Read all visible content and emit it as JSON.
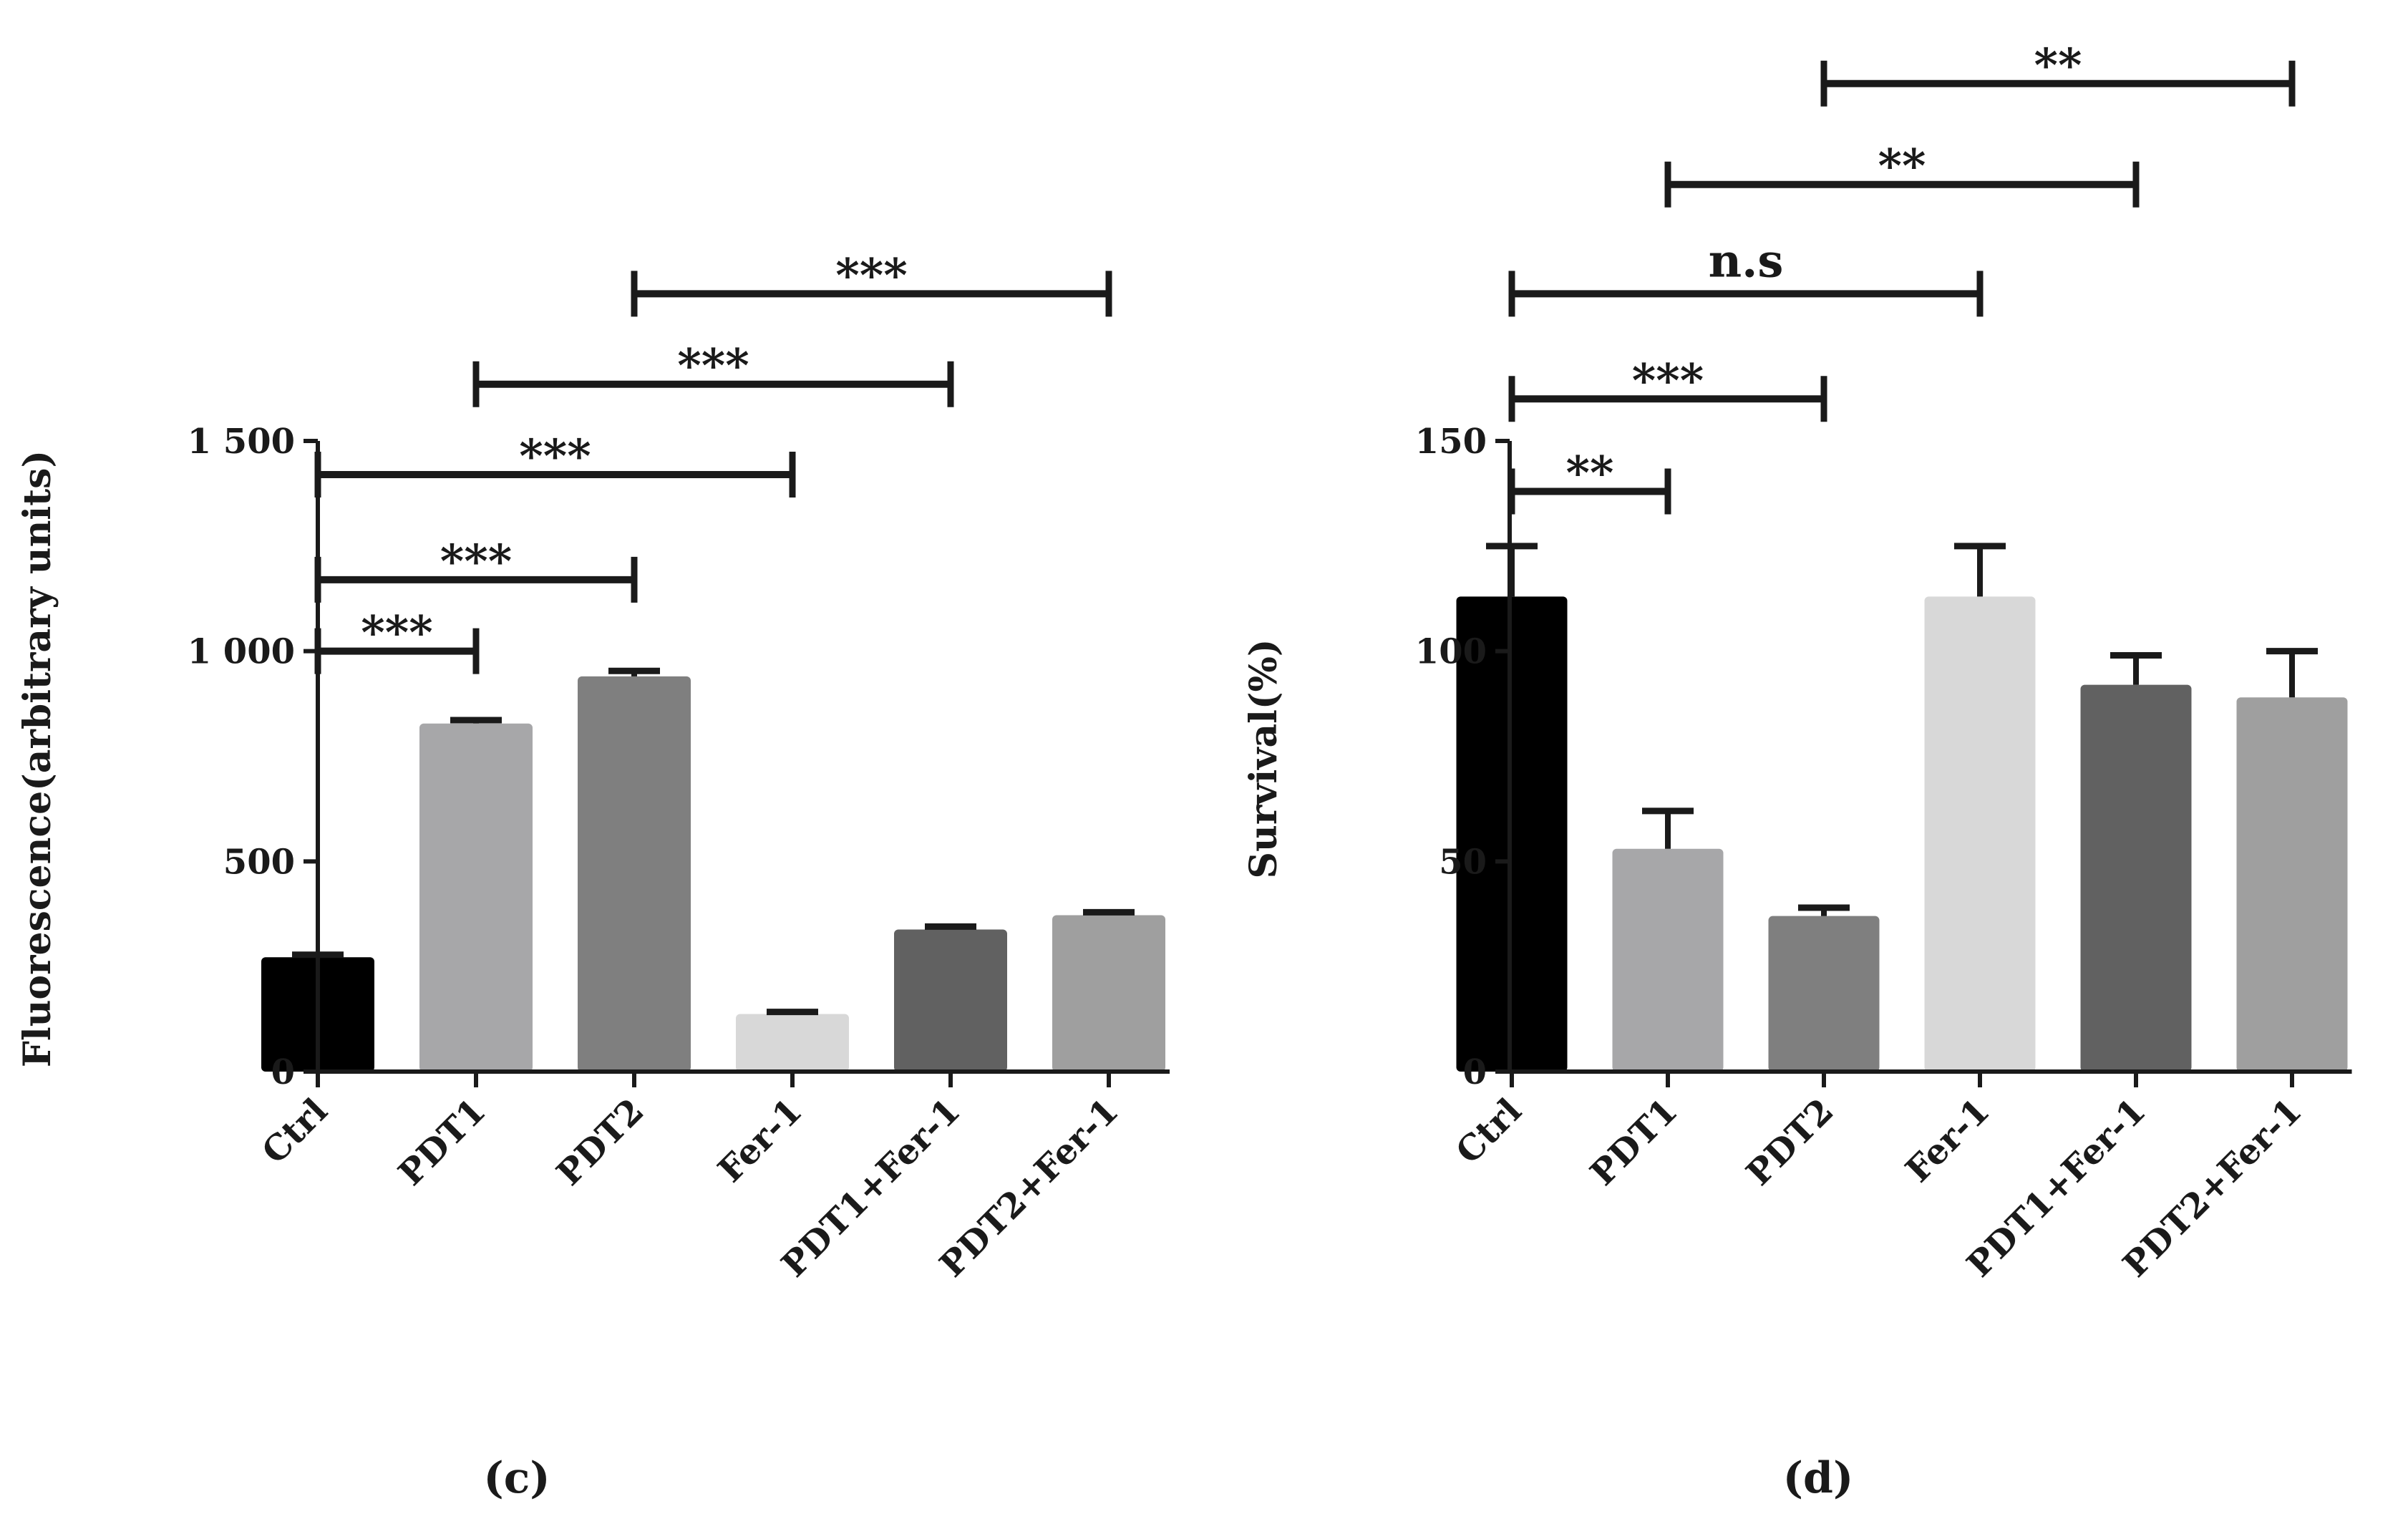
{
  "chart_data": [
    {
      "type": "bar",
      "panel": "c",
      "ylabel": "Fluorescence(arbitrary units)",
      "ylim": [
        0,
        1500
      ],
      "yticks": [
        0,
        500,
        1000,
        1500
      ],
      "ytick_labels": [
        "0",
        "500",
        "1 000",
        "1 500"
      ],
      "categories": [
        "Ctrl",
        "PDT1",
        "PDT2",
        "Fer-1",
        "PDT1+Fer-1",
        "PDT2+Fer-1"
      ],
      "values": [
        272,
        828,
        940,
        137,
        338,
        372
      ],
      "errors": [
        6,
        8,
        13,
        5,
        7,
        7
      ],
      "colors": [
        "#000000",
        "#a7a7a9",
        "#7f7f7f",
        "#d8d8d8",
        "#616161",
        "#9f9f9f"
      ],
      "comparisons": [
        {
          "from": 0,
          "to": 1,
          "label": "***",
          "level": 1000
        },
        {
          "from": 0,
          "to": 2,
          "label": "***",
          "level": 1170
        },
        {
          "from": 0,
          "to": 3,
          "label": "***",
          "level": 1420
        },
        {
          "from": 1,
          "to": 4,
          "label": "***",
          "level": 1635
        },
        {
          "from": 2,
          "to": 5,
          "label": "***",
          "level": 1850
        }
      ]
    },
    {
      "type": "bar",
      "panel": "d",
      "ylabel": "Survival(%)",
      "ylim": [
        0,
        150
      ],
      "yticks": [
        0,
        50,
        100,
        150
      ],
      "ytick_labels": [
        "0",
        "50",
        "100",
        "150"
      ],
      "categories": [
        "Ctrl",
        "PDT1",
        "PDT2",
        "Fer-1",
        "PDT1+Fer-1",
        "PDT2+Fer-1"
      ],
      "values": [
        113,
        53,
        37,
        113,
        92,
        89
      ],
      "errors": [
        12,
        9,
        2,
        12,
        7,
        11
      ],
      "colors": [
        "#000000",
        "#a7a7a9",
        "#7f7f7f",
        "#d8d8d8",
        "#616161",
        "#9f9f9f"
      ],
      "comparisons": [
        {
          "from": 0,
          "to": 1,
          "label": "**",
          "level": 138
        },
        {
          "from": 0,
          "to": 2,
          "label": "***",
          "level": 160
        },
        {
          "from": 0,
          "to": 3,
          "label": "n.s",
          "level": 185
        },
        {
          "from": 1,
          "to": 4,
          "label": "**",
          "level": 211
        },
        {
          "from": 2,
          "to": 5,
          "label": "**",
          "level": 235
        }
      ]
    }
  ]
}
